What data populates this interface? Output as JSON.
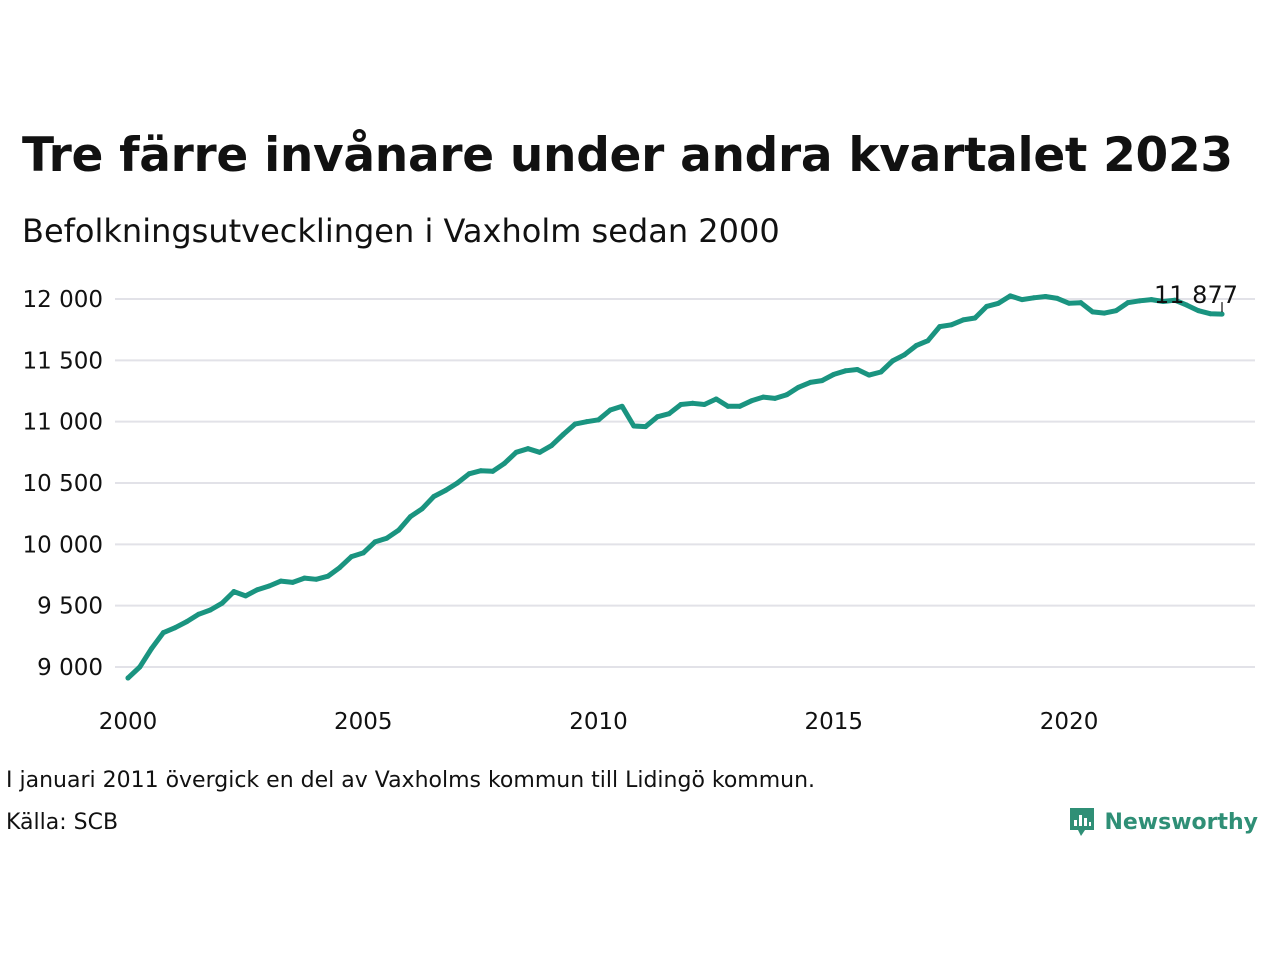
{
  "title": "Tre färre invånare under andra kvartalet 2023",
  "subtitle": "Befolkningsutvecklingen i Vaxholm sedan 2000",
  "note": "I januari 2011 övergick en del av Vaxholms kommun till Lidingö kommun.",
  "source": "Källa: SCB",
  "brand": "Newsworthy",
  "colors": {
    "line": "#1a9480",
    "grid": "#e2e2e8",
    "brand": "#2f8f76"
  },
  "chart_data": {
    "type": "line",
    "title": "Tre färre invånare under andra kvartalet 2023",
    "subtitle": "Befolkningsutvecklingen i Vaxholm sedan 2000",
    "xlabel": "",
    "ylabel": "",
    "xlim": [
      2000,
      2024.3
    ],
    "ylim": [
      8800,
      12150
    ],
    "grid": true,
    "legend": "none",
    "x_ticks": [
      2000,
      2005,
      2010,
      2015,
      2020
    ],
    "x_tick_labels": [
      "2000",
      "2005",
      "2010",
      "2015",
      "2020"
    ],
    "y_ticks": [
      9000,
      9500,
      10000,
      10500,
      11000,
      11500,
      12000
    ],
    "y_tick_labels": [
      "9 000",
      "9 500",
      "10 000",
      "10 500",
      "11 000",
      "11 500",
      "12 000"
    ],
    "end_label": "11 877",
    "series": [
      {
        "values": [
          {
            "x": 2000.0,
            "y": 8910
          },
          {
            "x": 2000.25,
            "y": 9000
          },
          {
            "x": 2000.5,
            "y": 9150
          },
          {
            "x": 2000.75,
            "y": 9280
          },
          {
            "x": 2001.0,
            "y": 9320
          },
          {
            "x": 2001.25,
            "y": 9370
          },
          {
            "x": 2001.5,
            "y": 9430
          },
          {
            "x": 2001.75,
            "y": 9465
          },
          {
            "x": 2002.0,
            "y": 9520
          },
          {
            "x": 2002.25,
            "y": 9615
          },
          {
            "x": 2002.5,
            "y": 9580
          },
          {
            "x": 2002.75,
            "y": 9630
          },
          {
            "x": 2003.0,
            "y": 9660
          },
          {
            "x": 2003.25,
            "y": 9700
          },
          {
            "x": 2003.5,
            "y": 9690
          },
          {
            "x": 2003.75,
            "y": 9725
          },
          {
            "x": 2004.0,
            "y": 9715
          },
          {
            "x": 2004.25,
            "y": 9740
          },
          {
            "x": 2004.5,
            "y": 9810
          },
          {
            "x": 2004.75,
            "y": 9900
          },
          {
            "x": 2005.0,
            "y": 9930
          },
          {
            "x": 2005.25,
            "y": 10020
          },
          {
            "x": 2005.5,
            "y": 10050
          },
          {
            "x": 2005.75,
            "y": 10115
          },
          {
            "x": 2006.0,
            "y": 10225
          },
          {
            "x": 2006.25,
            "y": 10290
          },
          {
            "x": 2006.5,
            "y": 10390
          },
          {
            "x": 2006.75,
            "y": 10440
          },
          {
            "x": 2007.0,
            "y": 10500
          },
          {
            "x": 2007.25,
            "y": 10575
          },
          {
            "x": 2007.5,
            "y": 10600
          },
          {
            "x": 2007.75,
            "y": 10595
          },
          {
            "x": 2008.0,
            "y": 10660
          },
          {
            "x": 2008.25,
            "y": 10750
          },
          {
            "x": 2008.5,
            "y": 10780
          },
          {
            "x": 2008.75,
            "y": 10750
          },
          {
            "x": 2009.0,
            "y": 10805
          },
          {
            "x": 2009.25,
            "y": 10895
          },
          {
            "x": 2009.5,
            "y": 10980
          },
          {
            "x": 2009.75,
            "y": 11000
          },
          {
            "x": 2010.0,
            "y": 11015
          },
          {
            "x": 2010.25,
            "y": 11095
          },
          {
            "x": 2010.5,
            "y": 11125
          },
          {
            "x": 2010.75,
            "y": 10965
          },
          {
            "x": 2011.0,
            "y": 10960
          },
          {
            "x": 2011.25,
            "y": 11040
          },
          {
            "x": 2011.5,
            "y": 11065
          },
          {
            "x": 2011.75,
            "y": 11140
          },
          {
            "x": 2012.0,
            "y": 11150
          },
          {
            "x": 2012.25,
            "y": 11140
          },
          {
            "x": 2012.5,
            "y": 11185
          },
          {
            "x": 2012.75,
            "y": 11125
          },
          {
            "x": 2013.0,
            "y": 11125
          },
          {
            "x": 2013.25,
            "y": 11170
          },
          {
            "x": 2013.5,
            "y": 11200
          },
          {
            "x": 2013.75,
            "y": 11190
          },
          {
            "x": 2014.0,
            "y": 11220
          },
          {
            "x": 2014.25,
            "y": 11280
          },
          {
            "x": 2014.5,
            "y": 11320
          },
          {
            "x": 2014.75,
            "y": 11335
          },
          {
            "x": 2015.0,
            "y": 11385
          },
          {
            "x": 2015.25,
            "y": 11415
          },
          {
            "x": 2015.5,
            "y": 11425
          },
          {
            "x": 2015.75,
            "y": 11380
          },
          {
            "x": 2016.0,
            "y": 11405
          },
          {
            "x": 2016.25,
            "y": 11495
          },
          {
            "x": 2016.5,
            "y": 11545
          },
          {
            "x": 2016.75,
            "y": 11620
          },
          {
            "x": 2017.0,
            "y": 11660
          },
          {
            "x": 2017.25,
            "y": 11775
          },
          {
            "x": 2017.5,
            "y": 11790
          },
          {
            "x": 2017.75,
            "y": 11830
          },
          {
            "x": 2018.0,
            "y": 11845
          },
          {
            "x": 2018.25,
            "y": 11940
          },
          {
            "x": 2018.5,
            "y": 11965
          },
          {
            "x": 2018.75,
            "y": 12025
          },
          {
            "x": 2019.0,
            "y": 11995
          },
          {
            "x": 2019.25,
            "y": 12010
          },
          {
            "x": 2019.5,
            "y": 12020
          },
          {
            "x": 2019.75,
            "y": 12005
          },
          {
            "x": 2020.0,
            "y": 11965
          },
          {
            "x": 2020.25,
            "y": 11970
          },
          {
            "x": 2020.5,
            "y": 11895
          },
          {
            "x": 2020.75,
            "y": 11885
          },
          {
            "x": 2021.0,
            "y": 11905
          },
          {
            "x": 2021.25,
            "y": 11970
          },
          {
            "x": 2021.5,
            "y": 11985
          },
          {
            "x": 2021.75,
            "y": 11995
          },
          {
            "x": 2022.0,
            "y": 11980
          },
          {
            "x": 2022.25,
            "y": 11990
          },
          {
            "x": 2022.5,
            "y": 11950
          },
          {
            "x": 2022.75,
            "y": 11905
          },
          {
            "x": 2023.0,
            "y": 11880
          },
          {
            "x": 2023.25,
            "y": 11877
          }
        ]
      }
    ]
  }
}
